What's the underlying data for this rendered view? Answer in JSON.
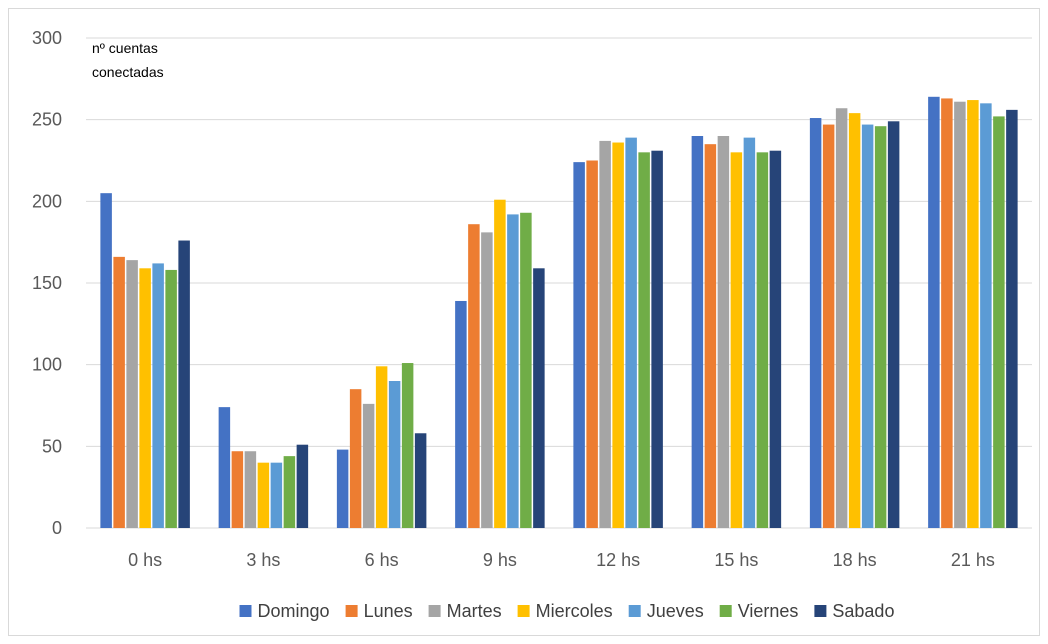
{
  "chart_data": {
    "type": "bar",
    "title": "",
    "xlabel": "",
    "ylabel": "nº cuentas conectadas",
    "ylabel_lines": [
      "nº cuentas",
      "conectadas"
    ],
    "ylim": [
      0,
      300
    ],
    "yticks": [
      0,
      50,
      100,
      150,
      200,
      250,
      300
    ],
    "grid": true,
    "legend_position": "bottom",
    "categories": [
      "0 hs",
      "3 hs",
      "6 hs",
      "9 hs",
      "12 hs",
      "15 hs",
      "18 hs",
      "21 hs"
    ],
    "series": [
      {
        "name": "Domingo",
        "color": "#4472c4",
        "values": [
          205,
          74,
          48,
          139,
          224,
          240,
          251,
          264
        ]
      },
      {
        "name": "Lunes",
        "color": "#ed7d31",
        "values": [
          166,
          47,
          85,
          186,
          225,
          235,
          247,
          263
        ]
      },
      {
        "name": "Martes",
        "color": "#a5a5a5",
        "values": [
          164,
          47,
          76,
          181,
          237,
          240,
          257,
          261
        ]
      },
      {
        "name": "Miercoles",
        "color": "#ffc000",
        "values": [
          159,
          40,
          99,
          201,
          236,
          230,
          254,
          262
        ]
      },
      {
        "name": "Jueves",
        "color": "#5b9bd5",
        "values": [
          162,
          40,
          90,
          192,
          239,
          239,
          247,
          260
        ]
      },
      {
        "name": "Viernes",
        "color": "#70ad47",
        "values": [
          158,
          44,
          101,
          193,
          230,
          230,
          246,
          252
        ]
      },
      {
        "name": "Sabado",
        "color": "#264478",
        "values": [
          176,
          51,
          58,
          159,
          231,
          231,
          249,
          256
        ]
      }
    ]
  }
}
